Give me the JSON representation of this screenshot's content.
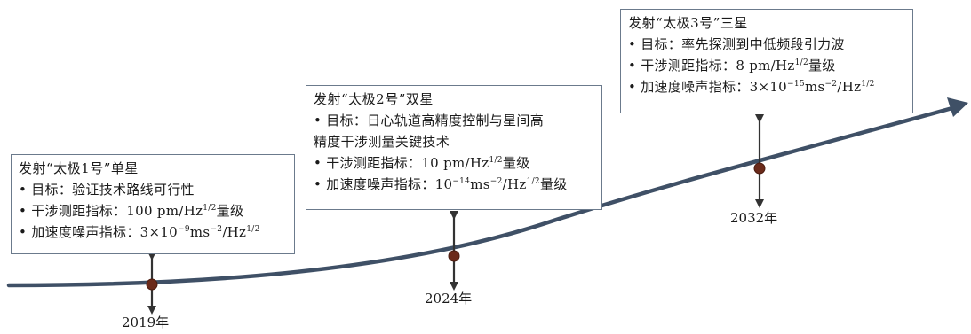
{
  "colors": {
    "curve": "#3f5066",
    "marker": "#6b2a1a",
    "arrow": "#333333",
    "box_border": "#6b7a8c"
  },
  "milestones": [
    {
      "year": "2019年",
      "title": "发射“太极1号”单星",
      "items": [
        {
          "parts": [
            {
              "t": "目标：验证技术路线可行性"
            }
          ]
        },
        {
          "parts": [
            {
              "t": "干涉测距指标：100 pm/Hz"
            },
            {
              "sup": "1/2"
            },
            {
              "t": "量级"
            }
          ]
        },
        {
          "parts": [
            {
              "t": "加速度噪声指标：3×10"
            },
            {
              "sup": "−9"
            },
            {
              "t": "ms"
            },
            {
              "sup": "−2"
            },
            {
              "t": "/Hz"
            },
            {
              "sup": "1/2"
            }
          ]
        }
      ]
    },
    {
      "year": "2024年",
      "title": "发射“太极2号”双星",
      "items": [
        {
          "parts": [
            {
              "t": "目标：日心轨道高精度控制与星间高"
            }
          ],
          "continuation": "精度干涉测量关键技术"
        },
        {
          "parts": [
            {
              "t": "干涉测距指标：10 pm/Hz"
            },
            {
              "sup": "1/2"
            },
            {
              "t": "量级"
            }
          ]
        },
        {
          "parts": [
            {
              "t": "加速度噪声指标：10"
            },
            {
              "sup": "−14"
            },
            {
              "t": "ms"
            },
            {
              "sup": "−2"
            },
            {
              "t": "/Hz"
            },
            {
              "sup": "1/2"
            },
            {
              "t": "量级"
            }
          ]
        }
      ]
    },
    {
      "year": "2032年",
      "title": "发射“太极3号”三星",
      "items": [
        {
          "parts": [
            {
              "t": "目标：率先探测到中低频段引力波"
            }
          ]
        },
        {
          "parts": [
            {
              "t": "干涉测距指标：8 pm/Hz"
            },
            {
              "sup": "1/2"
            },
            {
              "t": "量级"
            }
          ]
        },
        {
          "parts": [
            {
              "t": "加速度噪声指标：3×10"
            },
            {
              "sup": "−15"
            },
            {
              "t": "ms"
            },
            {
              "sup": "−2"
            },
            {
              "t": "/Hz"
            },
            {
              "sup": "1/2"
            }
          ]
        }
      ]
    }
  ]
}
